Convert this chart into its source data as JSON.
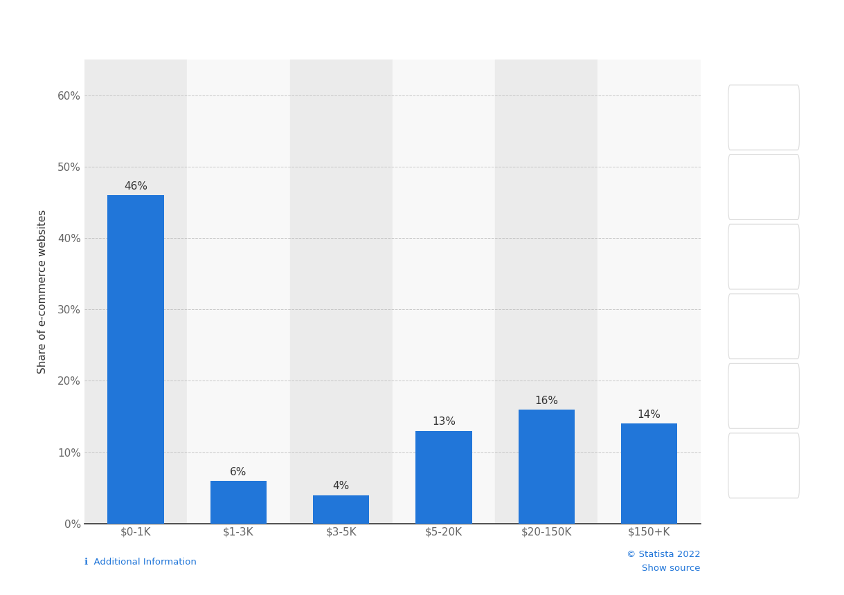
{
  "categories": [
    "$0-1K",
    "$1-3K",
    "$3-5K",
    "$5-20K",
    "$20-150K",
    "$150+K"
  ],
  "values": [
    46,
    6,
    4,
    13,
    16,
    14
  ],
  "bar_color": "#2176d9",
  "ylabel": "Share of e-commerce websites",
  "ylim": [
    0,
    65
  ],
  "yticks": [
    0,
    10,
    20,
    30,
    40,
    50,
    60
  ],
  "ytick_labels": [
    "0%",
    "10%",
    "20%",
    "30%",
    "40%",
    "50%",
    "60%"
  ],
  "tick_fontsize": 11,
  "ylabel_fontsize": 11,
  "bar_label_fontsize": 11,
  "figure_bg": "#ffffff",
  "outer_bg": "#e8e8e8",
  "col_gray": "#ebebeb",
  "col_white": "#f8f8f8",
  "footer_text_left": "ℹ  Additional Information",
  "footer_text_right_statista": "© Statista 2022  ⚑",
  "footer_text_right_source": "Show source  ℹ"
}
